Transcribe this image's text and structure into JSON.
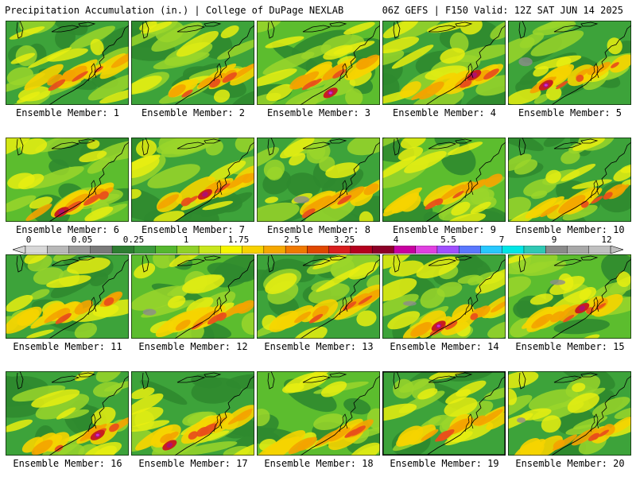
{
  "header": {
    "left_title": "Precipitation Accumulation (in.) | College of DuPage NEXLAB",
    "right_title": "06Z GEFS | F150 Valid: 12Z SAT JUN 14 2025"
  },
  "legend": {
    "tick_labels": [
      "0",
      "0.05",
      "0.25",
      "1",
      "1.75",
      "2.5",
      "3.25",
      "4",
      "5.5",
      "7",
      "9",
      "12"
    ],
    "colors": [
      "#d8d8d8",
      "#b8b8b8",
      "#9a9a9a",
      "#7a7a7a",
      "#2e7d32",
      "#3c9a3c",
      "#55b72f",
      "#8fd12a",
      "#c8e61e",
      "#f5f500",
      "#f7d200",
      "#f5a800",
      "#f07a00",
      "#e04800",
      "#d81e1e",
      "#b4001e",
      "#8c0028",
      "#c800a0",
      "#e040e0",
      "#a050ff",
      "#5a78ff",
      "#28c8ff",
      "#00e6e6",
      "#30c8b4",
      "#8a8a8a",
      "#a8a8a8",
      "#c0c0c0"
    ]
  },
  "panels": [
    {
      "label": "Ensemble Member: 1"
    },
    {
      "label": "Ensemble Member: 2"
    },
    {
      "label": "Ensemble Member: 3"
    },
    {
      "label": "Ensemble Member: 4"
    },
    {
      "label": "Ensemble Member: 5"
    },
    {
      "label": "Ensemble Member: 6"
    },
    {
      "label": "Ensemble Member: 7"
    },
    {
      "label": "Ensemble Member: 8"
    },
    {
      "label": "Ensemble Member: 9"
    },
    {
      "label": "Ensemble Member: 10"
    },
    {
      "label": "Ensemble Member: 11"
    },
    {
      "label": "Ensemble Member: 12"
    },
    {
      "label": "Ensemble Member: 13"
    },
    {
      "label": "Ensemble Member: 14"
    },
    {
      "label": "Ensemble Member: 15"
    },
    {
      "label": "Ensemble Member: 16"
    },
    {
      "label": "Ensemble Member: 17"
    },
    {
      "label": "Ensemble Member: 18"
    },
    {
      "label": "Ensemble Member: 19"
    },
    {
      "label": "Ensemble Member: 20"
    }
  ]
}
